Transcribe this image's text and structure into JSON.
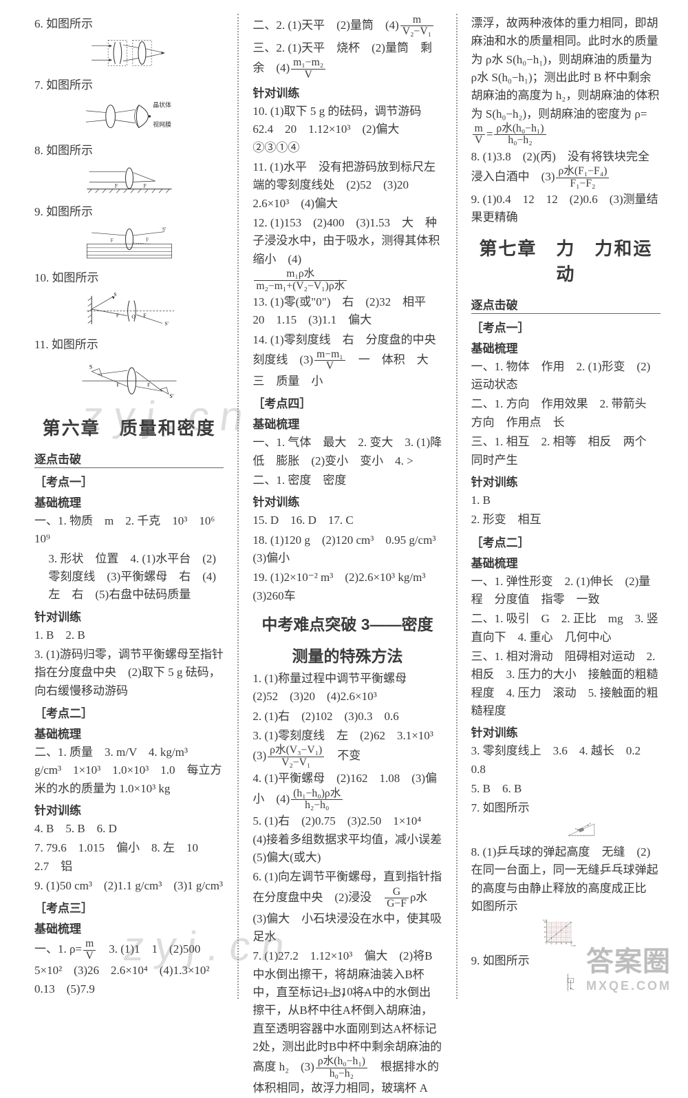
{
  "page_number": "— 310 —",
  "watermarks": {
    "wm1": "zyj.cn",
    "wm2": "zyj.cn",
    "wm3_big": "答案圈",
    "wm3_small": "MXQE.COM"
  },
  "colors": {
    "text": "#3a3a3a",
    "rule": "#666666",
    "dotted": "#999999",
    "bg": "#ffffff",
    "watermark": "rgba(120,120,120,0.25)",
    "grid": "#b08080",
    "axis": "#2a2a2a"
  },
  "col1": {
    "fig6_caption": "6. 如图所示",
    "fig7_caption": "7. 如图所示",
    "fig7_labels": {
      "a": "晶状体",
      "b": "视网膜"
    },
    "fig8_caption": "8. 如图所示",
    "fig9_caption": "9. 如图所示",
    "fig10_caption": "10. 如图所示",
    "fig11_caption": "11. 如图所示",
    "chapter6": "第六章　质量和密度",
    "breakthrough": "逐点击破",
    "kd1": "［考点一］",
    "base_title": "基础梳理",
    "l1": "一、1. 物质　m　2. 千克　10³　10⁶　10⁹",
    "l1b": "3. 形状　位置　4. (1)水平台　(2)零刻度线　(3)平衡螺母　右　(4)左　右　(5)右盘中砝码质量",
    "train": "针对训练",
    "l2": "1. B　2. B",
    "l3": "3. (1)游码归零，调节平衡螺母至指针指在分度盘中央　(2)取下 5 g 砝码，向右缓慢移动游码",
    "kd2": "［考点二］",
    "l4": "二、1. 质量　3. m/V　4. kg/m³　g/cm³　1×10³　1.0×10³　1.0　每立方米的水的质量为 1.0×10³ kg",
    "l5": "4. B　5. B　6. D",
    "l6": "7. 79.6　1.015　偏小　8. 左　10　2.7　铝",
    "l7": "9. (1)50 cm³　(2)1.1 g/cm³　(3)1 g/cm³",
    "kd3": "［考点三］",
    "l8_pre": "一、1. ρ=",
    "l8_num": "m",
    "l8_den": "V",
    "l8_post": "　3. (1)1　1　(2)500　5×10²　(3)26　2.6×10⁴　(4)1.3×10²　0.13　(5)7.9"
  },
  "col2": {
    "l1_pre": "二、2. (1)天平　(2)量筒　(4)",
    "l1_num": "m",
    "l1_den": "V₂−V₁",
    "l2_pre": "三、2. (1)天平　烧杯　(2)量筒　剩余　(4)",
    "l2_num": "m₁−m₂",
    "l2_den": "V",
    "train": "针对训练",
    "l3": "10. (1)取下 5 g 的砝码，调节游码　62.4　20　1.12×10³　(2)偏大　②③①④",
    "l4": "11. (1)水平　没有把游码放到标尺左端的零刻度线处　(2)52　(3)20　2.6×10³　(4)偏大",
    "l5_pre": "12. (1)153　(2)400　(3)1.53　大　种子浸没水中，由于吸水，测得其体积缩小　(4)",
    "l5_num": "m₁ρ水",
    "l5_den": "m₂−m₁+(V₂−V₁)ρ水",
    "l6": "13. (1)零(或\"0\")　右　(2)32　相平　20　1.15　(3)1.1　偏大",
    "l7_pre": "14. (1)零刻度线　右　分度盘的中央刻度线　(3)",
    "l7_num": "m−m₁",
    "l7_den": "V",
    "l7_post": "　一　体积　大　三　质量　小",
    "kd4": "［考点四］",
    "base": "基础梳理",
    "l8": "一、1. 气体　最大　2. 变大　3. (1)降低　膨胀　(2)变小　变小　4. >",
    "l9": "二、1. 密度　密度",
    "l10": "15. D　16. D　17. C",
    "l11": "18. (1)120 g　(2)120 cm³　0.95 g/cm³　(3)偏小",
    "l12": "19. (1)2×10⁻² m³　(2)2.6×10³ kg/m³　(3)260车",
    "sub_title_a": "中考难点突破 3——密度",
    "sub_title_b": "测量的特殊方法",
    "l13": "1. (1)称量过程中调节平衡螺母　(2)52　(3)20　(4)2.6×10³",
    "l14": "2. (1)右　(2)102　(3)0.3　0.6",
    "l15_pre": "3. (1)零刻度线　左　(2)62　3.1×10³　(3)",
    "l15_num": "ρ水(V₃−V₁)",
    "l15_den": "V₂−V₁",
    "l15_post": "　不变",
    "l16_pre": "4. (1)平衡螺母　(2)162　1.08　(3)偏小　(4)",
    "l16_num": "(h₁−h₀)ρ水",
    "l16_den": "h₂−h₀",
    "l17": "5. (1)右　(2)0.75　(3)2.50　1×10⁴　(4)接着多组数据求平均值，减小误差　(5)偏大(或大)",
    "l18_pre": "6. (1)向左调节平衡螺母，直到指针指在分度盘中央　(2)浸没　",
    "l18_num": "G",
    "l18_den": "G−F",
    "l18_post": "ρ水　(3)偏大　小石块浸没在水中，使其吸足水",
    "l19_pre": "7. (1)27.2　1.12×10³　偏大　(2)将B中水倒出擦干，将胡麻油装入B杯中，直至标记1上，将A中的水倒出擦干，从B杯中往A杯倒入胡麻油，直至透明容器中水面刚到达A杯标记2处，测出此时B中杯中剩余胡麻油的高度 h₂　(3)",
    "l19_num": "ρ水(h₀−h₁)",
    "l19_den": "h₀−h₂",
    "l19_post": "　根据排水的体积相同，故浮力相同，玻璃杯 A"
  },
  "col3": {
    "l1_pre": "漂浮，故两种液体的重力相同，即胡麻油和水的质量相同。此时水的质量为 ρ水 S(h₀−h₁)，则胡麻油的质量为 ρ水 S(h₀−h₁)；测出此时 B 杯中剩余胡麻油的高度为 h₂，则胡麻油的体积为 S(h₀−h₂)，则胡麻油的密度为 ρ=",
    "l1_num1": "m",
    "l1_den1": "V",
    "l1_mid": "=",
    "l1_num2": "ρ水(h₀−h₁)",
    "l1_den2": "h₀−h₂",
    "l2_pre": "8. (1)3.8　(2)(丙)　没有将铁块完全浸入白酒中　(3)",
    "l2_num": "ρ水(F₁−F₄)",
    "l2_den": "F₁−F₂",
    "l3": "9. (1)0.4　12　12　(2)0.6　(3)测量结果更精确",
    "chapter7": "第七章　力　力和运动",
    "breakthrough": "逐点击破",
    "kd1": "［考点一］",
    "base": "基础梳理",
    "l4": "一、1. 物体　作用　2. (1)形变　(2)运动状态",
    "l5": "二、1. 方向　作用效果　2. 带箭头　方向　作用点　长",
    "l6": "三、1. 相互　2. 相等　相反　两个　同时产生",
    "train": "针对训练",
    "l7": "1. B",
    "l8": "2. 形变　相互",
    "kd2": "［考点二］",
    "l9": "一、1. 弹性形变　2. (1)伸长　(2)量程　分度值　指零　一致",
    "l10": "二、1. 吸引　G　2. 正比　mg　3. 竖直向下　4. 重心　几何中心",
    "l11": "三、1. 相对滑动　阻碍相对运动　2. 相反　3. 压力的大小　接触面的粗糙程度　4. 压力　滚动　5. 接触面的粗糙程度",
    "l12": "3. 零刻度线上　3.6　4. 越长　0.2　0.8",
    "l13": "5. B　6. B",
    "l14": "7. 如图所示",
    "fig7_labels": {
      "F1": "F₁",
      "F": "F"
    },
    "l15": "8. (1)乒乓球的弹起高度　无缝　(2)在同一台面上，同一无缝乒乓球弹起的高度与由静止释放的高度成正比　如图所示",
    "chart": {
      "type": "scatter-line",
      "xlabel": "h₁/cm",
      "ylabel": "h₂/cm",
      "xlim": [
        0,
        50
      ],
      "ylim": [
        0,
        40
      ],
      "xticks": [
        0,
        10,
        20,
        30,
        40,
        50
      ],
      "yticks": [
        0,
        10,
        20,
        30,
        40
      ],
      "points": [
        [
          10,
          8
        ],
        [
          20,
          16
        ],
        [
          30,
          24
        ],
        [
          40,
          32
        ],
        [
          50,
          40
        ]
      ],
      "grid_color": "#b08080",
      "axis_color": "#2a2a2a",
      "fontsize": 11
    },
    "l16": "9. 如图所示",
    "fig9_label": "G"
  }
}
